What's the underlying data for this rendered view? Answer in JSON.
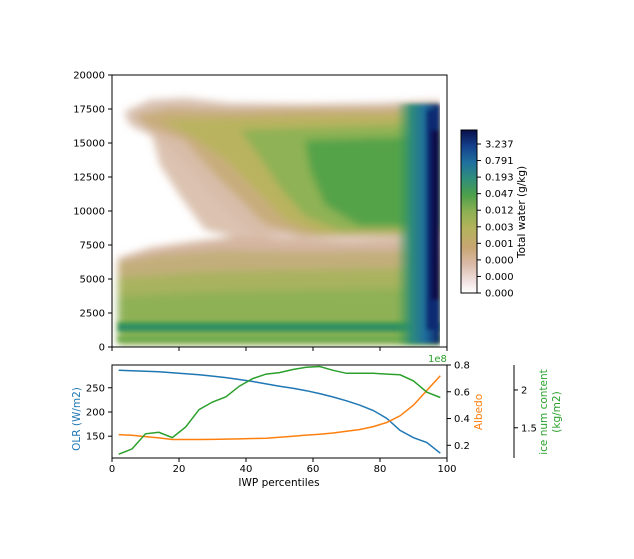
{
  "chart_data": [
    {
      "type": "heatmap",
      "title": "",
      "xlabel": "",
      "ylabel": "",
      "xlim": [
        0,
        100
      ],
      "ylim": [
        0,
        20000
      ],
      "y_ticks": [
        0,
        2500,
        5000,
        7500,
        10000,
        12500,
        15000,
        17500,
        20000
      ],
      "x_ticks": [
        0,
        20,
        40,
        60,
        80,
        100
      ],
      "colorbar": {
        "label": "Total water (g/kg)",
        "ticks": [
          "3.237",
          "0.791",
          "0.193",
          "0.047",
          "0.012",
          "0.003",
          "0.001",
          "0.000",
          "0.000",
          "0.000"
        ],
        "colors": [
          "#08104a",
          "#123f8a",
          "#1f6f9e",
          "#2e8b7a",
          "#3c9c4d",
          "#7fb04f",
          "#b5b45d",
          "#c9a773",
          "#d9b8a9",
          "#f2e6e6",
          "#ffffff"
        ]
      },
      "legend": "none"
    },
    {
      "type": "line",
      "xlabel": "IWP percentiles",
      "xlim": [
        0,
        100
      ],
      "x_ticks": [
        0,
        20,
        40,
        60,
        80,
        100
      ],
      "x": [
        2,
        6,
        10,
        14,
        18,
        22,
        26,
        30,
        34,
        38,
        42,
        46,
        50,
        54,
        58,
        62,
        66,
        70,
        74,
        78,
        82,
        86,
        90,
        94,
        98
      ],
      "series": [
        {
          "name": "OLR (W/m2)",
          "axis": "left",
          "color": "#1f77b4",
          "ylim": [
            105,
            297
          ],
          "ticks": [
            150,
            200,
            250
          ],
          "values": [
            286,
            285,
            284,
            283,
            281,
            279,
            277,
            274,
            271,
            267,
            263,
            258,
            253,
            249,
            244,
            238,
            231,
            223,
            214,
            203,
            187,
            162,
            147,
            137,
            115
          ]
        },
        {
          "name": "Albedo",
          "axis": "right1",
          "color": "#ff7f0e",
          "ylim": [
            0.105,
            0.8
          ],
          "ticks": [
            0.2,
            0.4,
            0.6,
            0.8
          ],
          "values": [
            0.28,
            0.275,
            0.265,
            0.255,
            0.243,
            0.243,
            0.243,
            0.244,
            0.246,
            0.248,
            0.251,
            0.253,
            0.26,
            0.268,
            0.276,
            0.282,
            0.292,
            0.305,
            0.318,
            0.34,
            0.37,
            0.42,
            0.5,
            0.61,
            0.72
          ]
        },
        {
          "name": "ice num content\n(kg/m2)",
          "axis": "right2",
          "color": "#2ca02c",
          "ylim": [
            1.1,
            2.33
          ],
          "ticks": [
            1.5,
            2.0
          ],
          "offset_label": "1e8",
          "values": [
            1.15,
            1.22,
            1.42,
            1.44,
            1.37,
            1.51,
            1.74,
            1.84,
            1.91,
            2.05,
            2.15,
            2.21,
            2.23,
            2.27,
            2.3,
            2.31,
            2.26,
            2.22,
            2.22,
            2.22,
            2.21,
            2.2,
            2.12,
            1.97,
            1.9
          ]
        }
      ]
    }
  ],
  "labels": {
    "olr_axis": "OLR (W/m2)",
    "albedo_axis": "Albedo",
    "ice_axis_line1": "ice num content",
    "ice_axis_line2": "(kg/m2)",
    "offset": "1e8",
    "xlabel": "IWP percentiles",
    "colorbar_label": "Total water (g/kg)"
  }
}
